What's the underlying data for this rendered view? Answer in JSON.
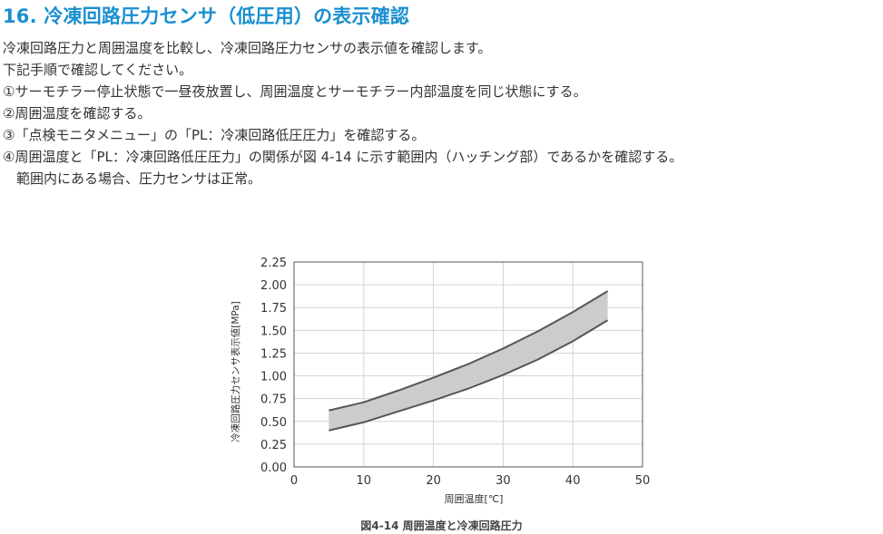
{
  "heading": "16. 冷凍回路圧力センサ（低圧用）の表示確認",
  "body": {
    "intro": "冷凍回路圧力と周囲温度を比較し、冷凍回路圧力センサの表示値を確認します。",
    "instruction": "下記手順で確認してください。",
    "steps": [
      "①サーモチラー停止状態で一昼夜放置し、周囲温度とサーモチラー内部温度を同じ状態にする。",
      "②周囲温度を確認する。",
      "③「点検モニタメニュー」の「PL：冷凍回路低圧圧力」を確認する。",
      "④周囲温度と「PL：冷凍回路低圧圧力」の関係が図 4-14 に示す範囲内（ハッチング部）であるかを確認する。"
    ],
    "note": "範囲内にある場合、圧力センサは正常。"
  },
  "caption": "図4-14 周囲温度と冷凍回路圧力",
  "colors": {
    "heading": "#1a8fd0",
    "band_fill": "#cccccc",
    "curve": "#555555",
    "plot_bg": "#ffffff",
    "grid": "#d4d4d4"
  },
  "chart_data": {
    "type": "area",
    "title": "図4-14 周囲温度と冷凍回路圧力",
    "xlabel": "周囲温度[℃]",
    "ylabel": "冷凍回路圧力センサ表示値[MPa]",
    "xlim": [
      0,
      50
    ],
    "ylim": [
      0,
      2.25
    ],
    "x_ticks": [
      "0",
      "10",
      "20",
      "30",
      "40",
      "50"
    ],
    "y_ticks": [
      "0.00",
      "0.25",
      "0.50",
      "0.75",
      "1.00",
      "1.25",
      "1.50",
      "1.75",
      "2.00",
      "2.25"
    ],
    "grid": true,
    "x": [
      5,
      10,
      15,
      20,
      25,
      30,
      35,
      40,
      45
    ],
    "series": [
      {
        "values": [
          0.62,
          0.71,
          0.84,
          0.98,
          1.13,
          1.3,
          1.49,
          1.7,
          1.93
        ]
      },
      {
        "values": [
          0.4,
          0.49,
          0.61,
          0.73,
          0.86,
          1.01,
          1.18,
          1.38,
          1.61
        ]
      }
    ]
  }
}
